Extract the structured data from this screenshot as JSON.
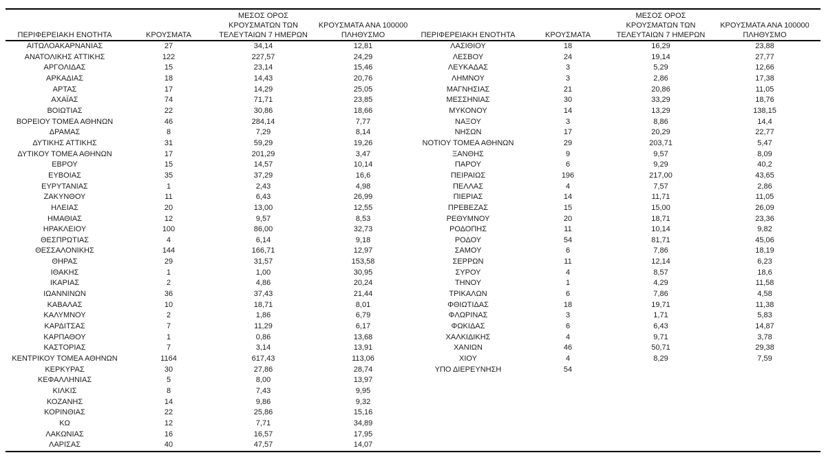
{
  "table": {
    "headers": {
      "region": "ΠΕΡΙΦΕΡΕΙΑΚΗ ΕΝΟΤΗΤΑ",
      "cases": "ΚΡΟΥΣΜΑΤΑ",
      "avg7": [
        "ΜΕΣΟΣ ΟΡΟΣ",
        "ΚΡΟΥΣΜΑΤΩΝ ΤΩΝ",
        "ΤΕΛΕΥΤΑΙΩΝ 7 ΗΜΕΡΩΝ"
      ],
      "per100k": [
        "ΚΡΟΥΣΜΑΤΑ ΑΝΑ 100000",
        "ΠΛΗΘΥΣΜΟ"
      ]
    },
    "left_rows": [
      [
        "ΑΙΤΩΛΟΑΚΑΡΝΑΝΙΑΣ",
        "27",
        "34,14",
        "12,81"
      ],
      [
        "ΑΝΑΤΟΛΙΚΗΣ ΑΤΤΙΚΗΣ",
        "122",
        "227,57",
        "24,29"
      ],
      [
        "ΑΡΓΟΛΙΔΑΣ",
        "15",
        "23,14",
        "15,46"
      ],
      [
        "ΑΡΚΑΔΙΑΣ",
        "18",
        "14,43",
        "20,76"
      ],
      [
        "ΑΡΤΑΣ",
        "17",
        "14,29",
        "25,05"
      ],
      [
        "ΑΧΑΪΑΣ",
        "74",
        "71,71",
        "23,85"
      ],
      [
        "ΒΟΙΩΤΙΑΣ",
        "22",
        "30,86",
        "18,66"
      ],
      [
        "ΒΟΡΕΙΟΥ ΤΟΜΕΑ ΑΘΗΝΩΝ",
        "46",
        "284,14",
        "7,77"
      ],
      [
        "ΔΡΑΜΑΣ",
        "8",
        "7,29",
        "8,14"
      ],
      [
        "ΔΥΤΙΚΗΣ ΑΤΤΙΚΗΣ",
        "31",
        "59,29",
        "19,26"
      ],
      [
        "ΔΥΤΙΚΟΥ ΤΟΜΕΑ ΑΘΗΝΩΝ",
        "17",
        "201,29",
        "3,47"
      ],
      [
        "ΕΒΡΟΥ",
        "15",
        "14,57",
        "10,14"
      ],
      [
        "ΕΥΒΟΙΑΣ",
        "35",
        "37,29",
        "16,6"
      ],
      [
        "ΕΥΡΥΤΑΝΙΑΣ",
        "1",
        "2,43",
        "4,98"
      ],
      [
        "ΖΑΚΥΝΘΟΥ",
        "11",
        "6,43",
        "26,99"
      ],
      [
        "ΗΛΕΙΑΣ",
        "20",
        "13,00",
        "12,55"
      ],
      [
        "ΗΜΑΘΙΑΣ",
        "12",
        "9,57",
        "8,53"
      ],
      [
        "ΗΡΑΚΛΕΙΟΥ",
        "100",
        "86,00",
        "32,73"
      ],
      [
        "ΘΕΣΠΡΩΤΙΑΣ",
        "4",
        "6,14",
        "9,18"
      ],
      [
        "ΘΕΣΣΑΛΟΝΙΚΗΣ",
        "144",
        "166,71",
        "12,97"
      ],
      [
        "ΘΗΡΑΣ",
        "29",
        "31,57",
        "153,58"
      ],
      [
        "ΙΘΑΚΗΣ",
        "1",
        "1,00",
        "30,95"
      ],
      [
        "ΙΚΑΡΙΑΣ",
        "2",
        "4,86",
        "20,24"
      ],
      [
        "ΙΩΑΝΝΙΝΩΝ",
        "36",
        "37,43",
        "21,44"
      ],
      [
        "ΚΑΒΑΛΑΣ",
        "10",
        "18,71",
        "8,01"
      ],
      [
        "ΚΑΛΥΜΝΟΥ",
        "2",
        "1,86",
        "6,79"
      ],
      [
        "ΚΑΡΔΙΤΣΑΣ",
        "7",
        "11,29",
        "6,17"
      ],
      [
        "ΚΑΡΠΑΘΟΥ",
        "1",
        "0,86",
        "13,68"
      ],
      [
        "ΚΑΣΤΟΡΙΑΣ",
        "7",
        "3,14",
        "13,91"
      ],
      [
        "ΚΕΝΤΡΙΚΟΥ ΤΟΜΕΑ ΑΘΗΝΩΝ",
        "1164",
        "617,43",
        "113,06"
      ],
      [
        "ΚΕΡΚΥΡΑΣ",
        "30",
        "27,86",
        "28,74"
      ],
      [
        "ΚΕΦΑΛΛΗΝΙΑΣ",
        "5",
        "8,00",
        "13,97"
      ],
      [
        "ΚΙΛΚΙΣ",
        "8",
        "7,43",
        "9,95"
      ],
      [
        "ΚΟΖΑΝΗΣ",
        "14",
        "9,86",
        "9,32"
      ],
      [
        "ΚΟΡΙΝΘΙΑΣ",
        "22",
        "25,86",
        "15,16"
      ],
      [
        "ΚΩ",
        "12",
        "7,71",
        "34,89"
      ],
      [
        "ΛΑΚΩΝΙΑΣ",
        "16",
        "16,57",
        "17,95"
      ],
      [
        "ΛΑΡΙΣΑΣ",
        "40",
        "47,57",
        "14,07"
      ]
    ],
    "right_rows": [
      [
        "ΛΑΣΙΘΙΟΥ",
        "18",
        "16,29",
        "23,88"
      ],
      [
        "ΛΕΣΒΟΥ",
        "24",
        "19,14",
        "27,77"
      ],
      [
        "ΛΕΥΚΑΔΑΣ",
        "3",
        "5,29",
        "12,66"
      ],
      [
        "ΛΗΜΝΟΥ",
        "3",
        "2,86",
        "17,38"
      ],
      [
        "ΜΑΓΝΗΣΙΑΣ",
        "21",
        "20,86",
        "11,05"
      ],
      [
        "ΜΕΣΣΗΝΙΑΣ",
        "30",
        "33,29",
        "18,76"
      ],
      [
        "ΜΥΚΟΝΟΥ",
        "14",
        "13,29",
        "138,15"
      ],
      [
        "ΝΑΞΟΥ",
        "3",
        "8,86",
        "14,4"
      ],
      [
        "ΝΗΣΩΝ",
        "17",
        "20,29",
        "22,77"
      ],
      [
        "ΝΟΤΙΟΥ ΤΟΜΕΑ ΑΘΗΝΩΝ",
        "29",
        "203,71",
        "5,47"
      ],
      [
        "ΞΑΝΘΗΣ",
        "9",
        "9,57",
        "8,09"
      ],
      [
        "ΠΑΡΟΥ",
        "6",
        "9,29",
        "40,2"
      ],
      [
        "ΠΕΙΡΑΙΩΣ",
        "196",
        "217,00",
        "43,65"
      ],
      [
        "ΠΕΛΛΑΣ",
        "4",
        "7,57",
        "2,86"
      ],
      [
        "ΠΙΕΡΙΑΣ",
        "14",
        "11,71",
        "11,05"
      ],
      [
        "ΠΡΕΒΕΖΑΣ",
        "15",
        "15,00",
        "26,09"
      ],
      [
        "ΡΕΘΥΜΝΟΥ",
        "20",
        "18,71",
        "23,36"
      ],
      [
        "ΡΟΔΟΠΗΣ",
        "11",
        "10,14",
        "9,82"
      ],
      [
        "ΡΟΔΟΥ",
        "54",
        "81,71",
        "45,06"
      ],
      [
        "ΣΑΜΟΥ",
        "6",
        "7,86",
        "18,19"
      ],
      [
        "ΣΕΡΡΩΝ",
        "11",
        "12,14",
        "6,23"
      ],
      [
        "ΣΥΡΟΥ",
        "4",
        "8,57",
        "18,6"
      ],
      [
        "ΤΗΝΟΥ",
        "1",
        "4,29",
        "11,58"
      ],
      [
        "ΤΡΙΚΑΛΩΝ",
        "6",
        "7,86",
        "4,58"
      ],
      [
        "ΦΘΙΩΤΙΔΑΣ",
        "18",
        "19,71",
        "11,38"
      ],
      [
        "ΦΛΩΡΙΝΑΣ",
        "3",
        "1,71",
        "5,83"
      ],
      [
        "ΦΩΚΙΔΑΣ",
        "6",
        "6,43",
        "14,87"
      ],
      [
        "ΧΑΛΚΙΔΙΚΗΣ",
        "4",
        "9,71",
        "3,78"
      ],
      [
        "ΧΑΝΙΩΝ",
        "46",
        "50,71",
        "29,38"
      ],
      [
        "ΧΙΟΥ",
        "4",
        "8,29",
        "7,59"
      ],
      [
        "ΥΠΟ ΔΙΕΡΕΥΝΗΣΗ",
        "54",
        "",
        ""
      ]
    ],
    "colors": {
      "text": "#1c1c1c",
      "border": "#000000",
      "background": "#ffffff"
    }
  }
}
